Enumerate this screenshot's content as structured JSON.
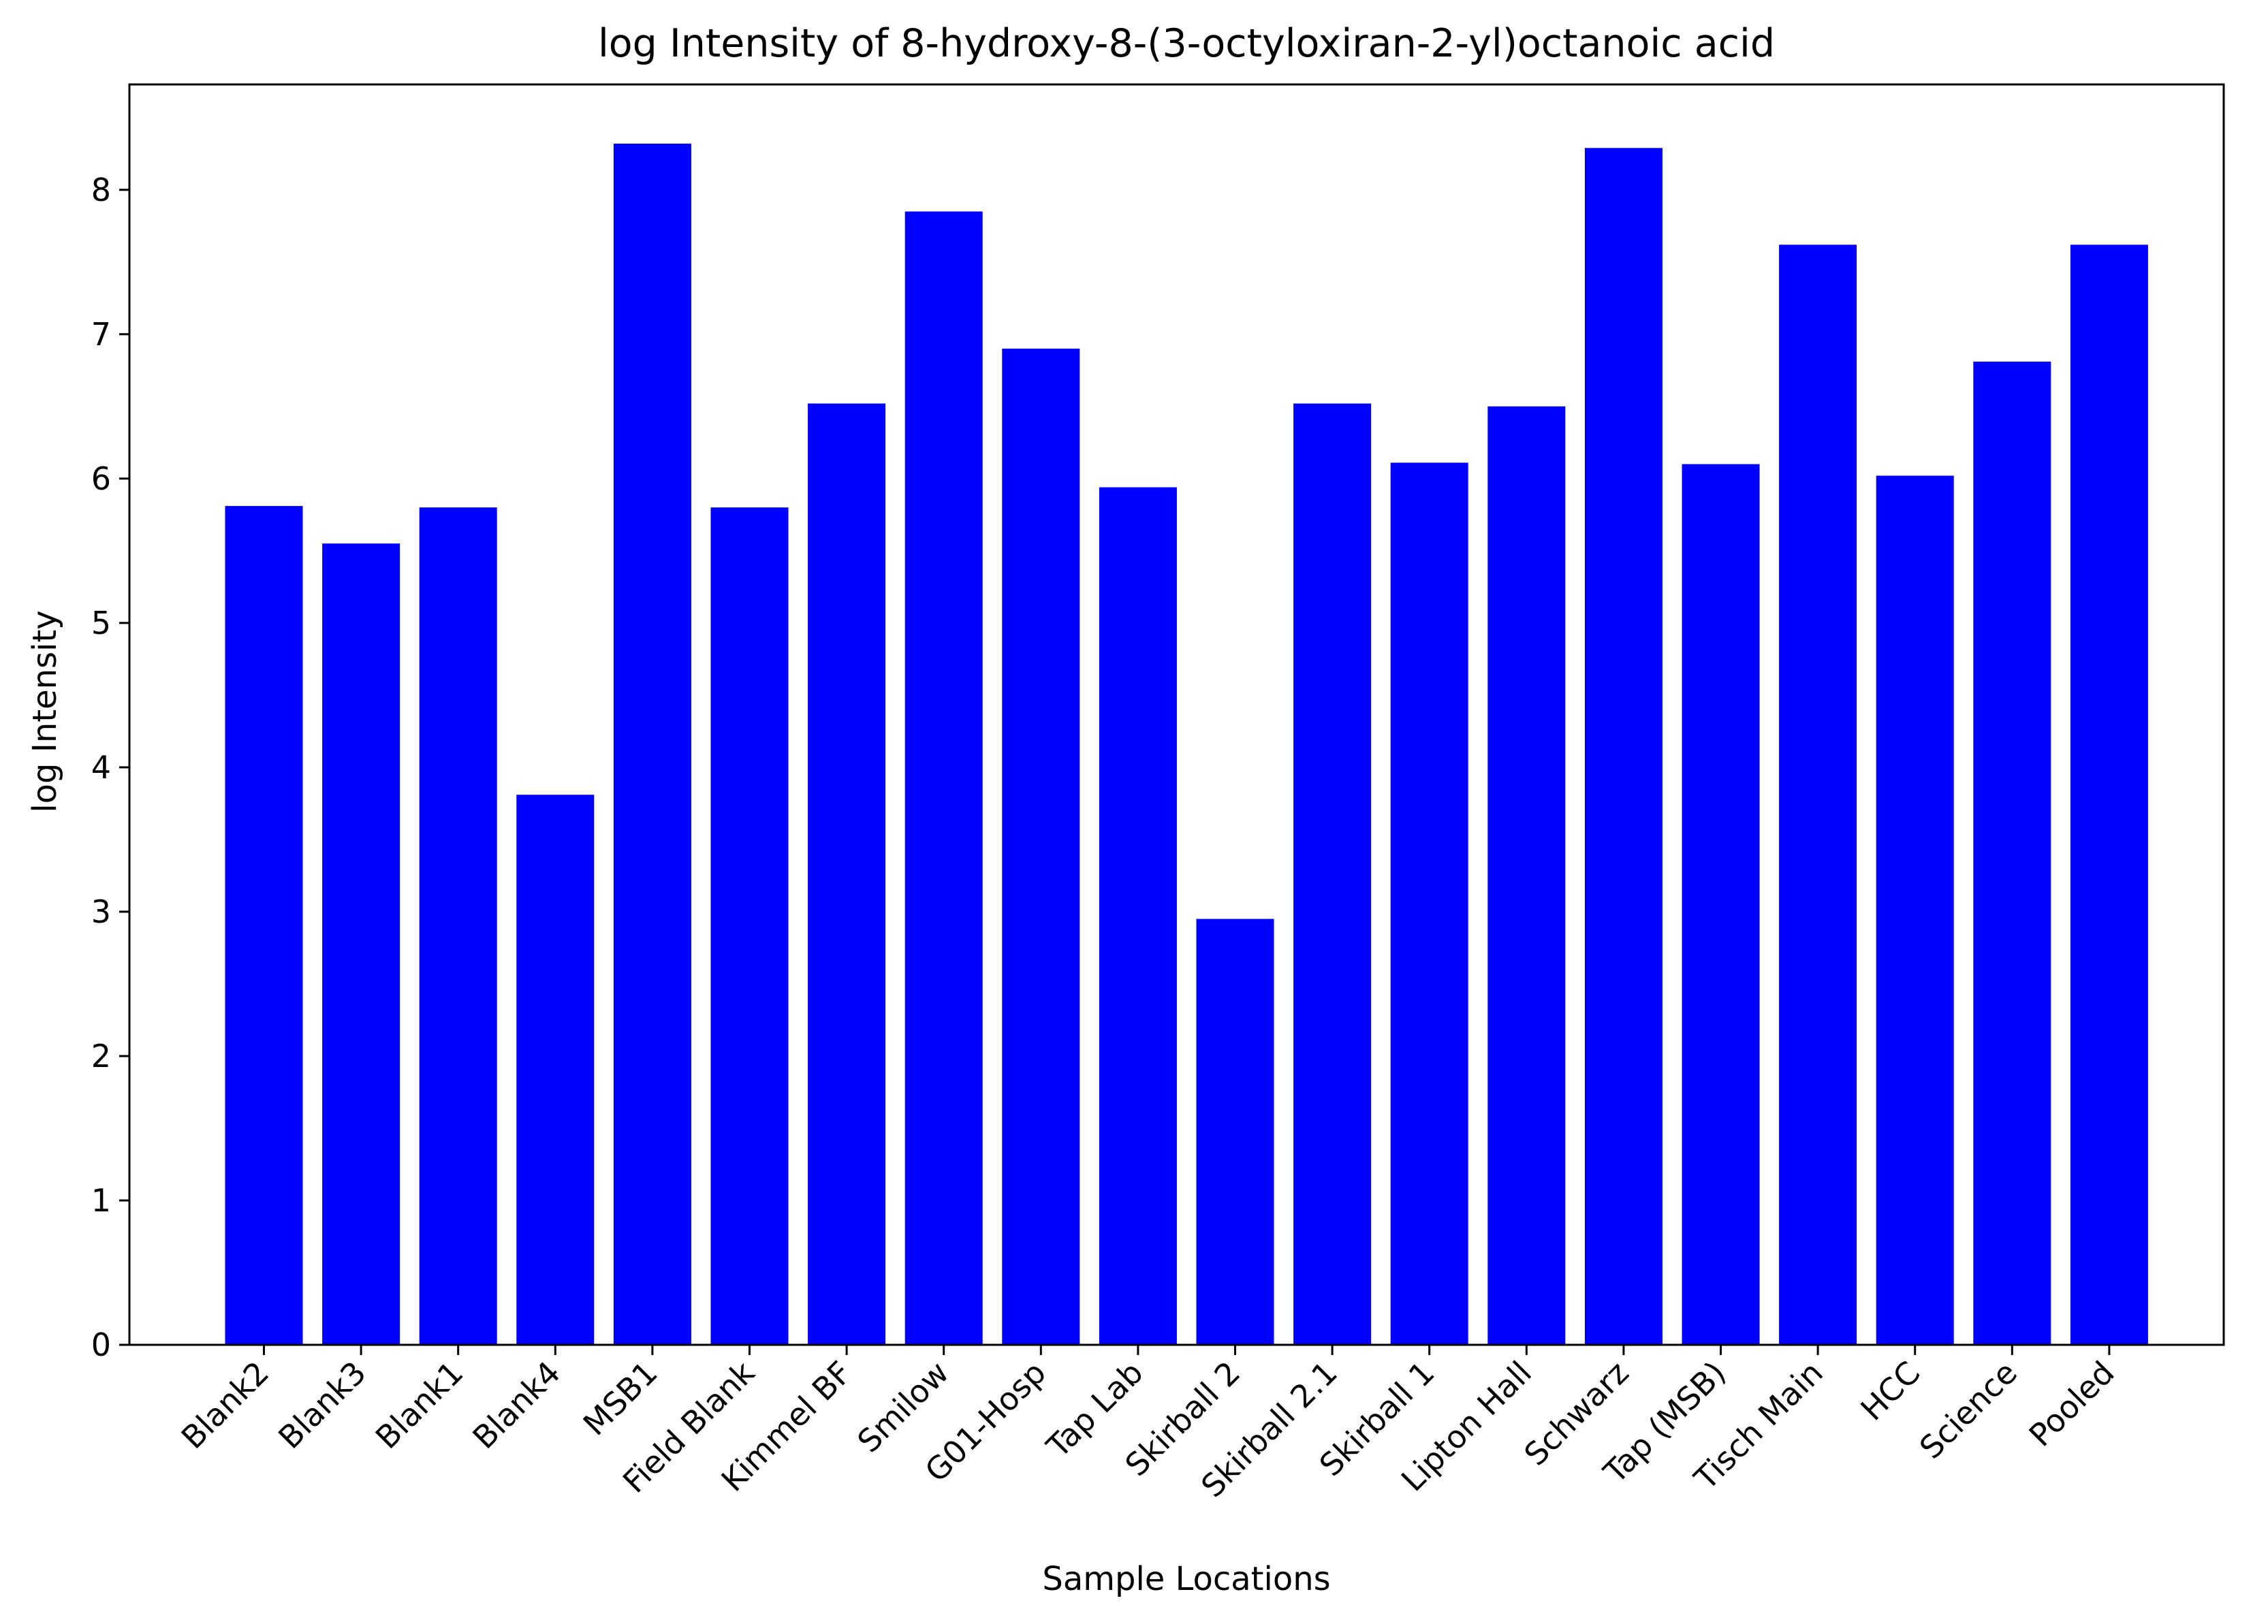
{
  "chart_data": {
    "type": "bar",
    "title": "log Intensity of 8-hydroxy-8-(3-octyloxiran-2-yl)octanoic acid",
    "xlabel": "Sample Locations",
    "ylabel": "log Intensity",
    "ylim": [
      0,
      8.73
    ],
    "yticks": [
      0,
      1,
      2,
      3,
      4,
      5,
      6,
      7,
      8
    ],
    "grid": false,
    "bar_color": "#0000ff",
    "categories": [
      "Blank2",
      "Blank3",
      "Blank1",
      "Blank4",
      "MSB1",
      "Field Blank",
      "Kimmel BF",
      "Smilow",
      "G01-Hosp",
      "Tap Lab",
      "Skirball 2",
      "Skirball 2.1",
      "Skirball 1",
      "Lipton Hall",
      "Schwarz",
      "Tap (MSB)",
      "Tisch Main",
      "HCC",
      "Science",
      "Pooled"
    ],
    "values": [
      5.81,
      5.55,
      5.8,
      3.81,
      8.32,
      5.8,
      6.52,
      7.85,
      6.9,
      5.94,
      2.95,
      6.52,
      6.11,
      6.5,
      8.29,
      6.1,
      7.62,
      6.02,
      6.81,
      7.62
    ]
  }
}
